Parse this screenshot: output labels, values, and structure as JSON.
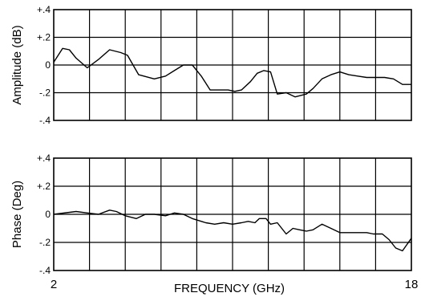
{
  "chart_data": [
    {
      "type": "line",
      "ylabel": "Amplitude (dB)",
      "ylim": [
        -0.4,
        0.4
      ],
      "xlim": [
        2,
        18
      ],
      "yticks": [
        "+.4",
        "+.2",
        "0",
        "-.2",
        "-.4"
      ],
      "grid": true,
      "x": [
        2.0,
        2.4,
        2.7,
        3.0,
        3.5,
        4.0,
        4.5,
        5.0,
        5.3,
        5.8,
        6.5,
        7.0,
        7.4,
        7.8,
        8.2,
        8.6,
        9.0,
        9.4,
        9.8,
        10.1,
        10.4,
        10.8,
        11.1,
        11.4,
        11.7,
        12.0,
        12.4,
        12.8,
        13.3,
        13.6,
        14.0,
        14.4,
        14.8,
        15.2,
        15.6,
        16.0,
        16.4,
        16.8,
        17.2,
        17.6,
        18.0
      ],
      "y": [
        0.02,
        0.12,
        0.11,
        0.05,
        -0.02,
        0.04,
        0.11,
        0.09,
        0.07,
        -0.07,
        -0.1,
        -0.08,
        -0.04,
        0.0,
        0.0,
        -0.08,
        -0.18,
        -0.18,
        -0.18,
        -0.19,
        -0.18,
        -0.12,
        -0.06,
        -0.04,
        -0.05,
        -0.21,
        -0.2,
        -0.23,
        -0.21,
        -0.17,
        -0.1,
        -0.07,
        -0.05,
        -0.07,
        -0.08,
        -0.09,
        -0.09,
        -0.09,
        -0.1,
        -0.14,
        -0.14
      ]
    },
    {
      "type": "line",
      "ylabel": "Phase (Deg)",
      "xlabel": "FREQUENCY (GHz)",
      "ylim": [
        -0.4,
        0.4
      ],
      "xlim": [
        2,
        18
      ],
      "yticks": [
        "+.4",
        "+.2",
        "0",
        "-.2",
        "-.4"
      ],
      "xticks": [
        "2",
        "18"
      ],
      "grid": true,
      "x": [
        2.0,
        3.0,
        3.5,
        4.0,
        4.5,
        4.8,
        5.2,
        5.7,
        6.1,
        6.5,
        7.0,
        7.4,
        7.8,
        8.2,
        8.8,
        9.2,
        9.6,
        10.0,
        10.4,
        10.7,
        11.0,
        11.2,
        11.5,
        11.7,
        12.0,
        12.4,
        12.7,
        13.0,
        13.3,
        13.6,
        14.0,
        14.4,
        14.8,
        15.2,
        15.6,
        16.0,
        16.3,
        16.7,
        17.0,
        17.3,
        17.6,
        18.0
      ],
      "y": [
        0.0,
        0.02,
        0.01,
        0.0,
        0.03,
        0.02,
        -0.01,
        -0.03,
        0.0,
        0.0,
        -0.01,
        0.01,
        0.0,
        -0.03,
        -0.06,
        -0.07,
        -0.06,
        -0.07,
        -0.06,
        -0.05,
        -0.06,
        -0.03,
        -0.03,
        -0.07,
        -0.06,
        -0.14,
        -0.1,
        -0.11,
        -0.12,
        -0.11,
        -0.07,
        -0.1,
        -0.13,
        -0.13,
        -0.13,
        -0.13,
        -0.14,
        -0.14,
        -0.18,
        -0.24,
        -0.26,
        -0.17
      ]
    }
  ]
}
